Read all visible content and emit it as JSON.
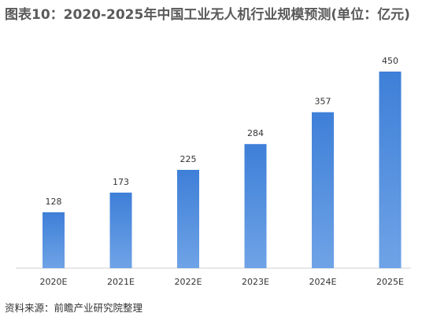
{
  "title": "图表10：2020-2025年中国工业无人机行业规模预测(单位：亿元)",
  "source": "资料来源：前瞻产业研究院整理",
  "chart_data": {
    "type": "bar",
    "title": "图表10：2020-2025年中国工业无人机行业规模预测(单位：亿元)",
    "categories": [
      "2020E",
      "2021E",
      "2022E",
      "2023E",
      "2024E",
      "2025E"
    ],
    "values": [
      128,
      173,
      225,
      284,
      357,
      450
    ],
    "data_labels": [
      "128",
      "173",
      "225",
      "284",
      "357",
      "450"
    ],
    "ylim": [
      0,
      500
    ],
    "grid": false,
    "legend": "none",
    "bar_color_start": "#6fa3e6",
    "bar_color_end": "#3e7fd8"
  }
}
